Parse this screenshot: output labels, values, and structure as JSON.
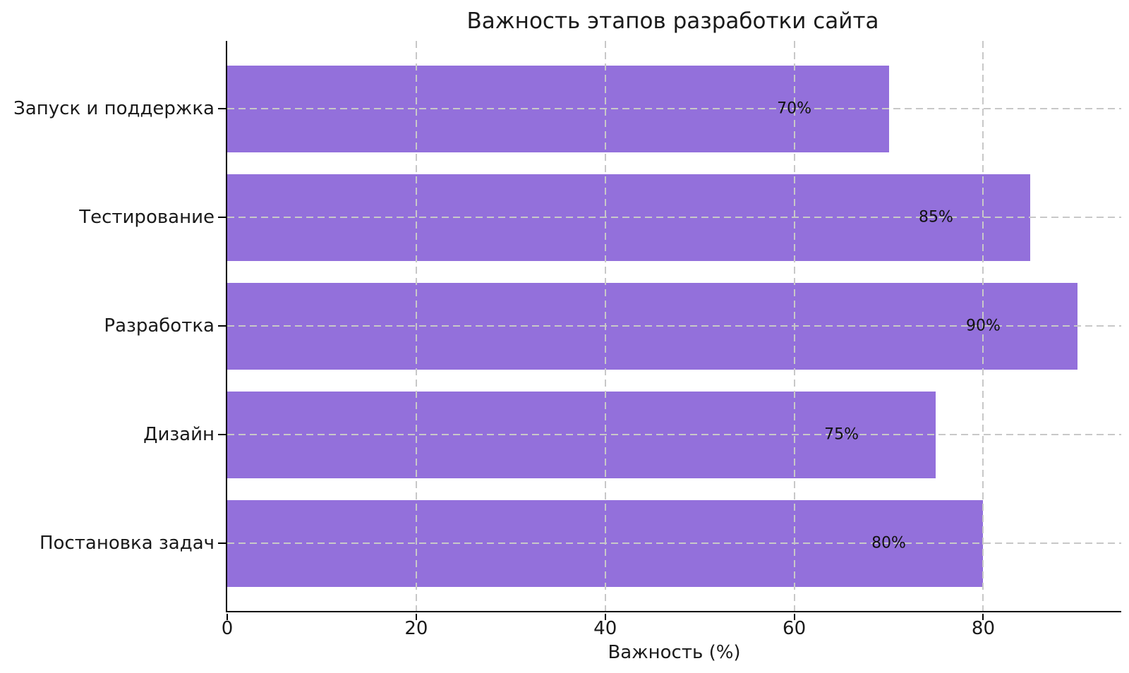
{
  "chart_data": {
    "type": "bar",
    "orientation": "horizontal",
    "title": "Важность этапов разработки сайта",
    "xlabel": "Важность (%)",
    "ylabel": "",
    "category_order": "top-to-bottom",
    "categories": [
      "Запуск и поддержка",
      "Тестирование",
      "Разработка",
      "Дизайн",
      "Постановка задач"
    ],
    "values": [
      70,
      85,
      90,
      75,
      80
    ],
    "value_labels": [
      "70%",
      "85%",
      "90%",
      "75%",
      "80%"
    ],
    "xticks": [
      0,
      20,
      40,
      60,
      80
    ],
    "xlim": [
      0,
      94.6
    ],
    "grid": true,
    "grid_style": "dashed-both-axes-over-bars",
    "legend": "none",
    "value_label_center_offset_units": 10,
    "colors": {
      "bar": "#9370DB",
      "grid": "#c8c8c8",
      "text": "#1a1a1a",
      "spine": "#000000",
      "background": "#ffffff"
    }
  }
}
